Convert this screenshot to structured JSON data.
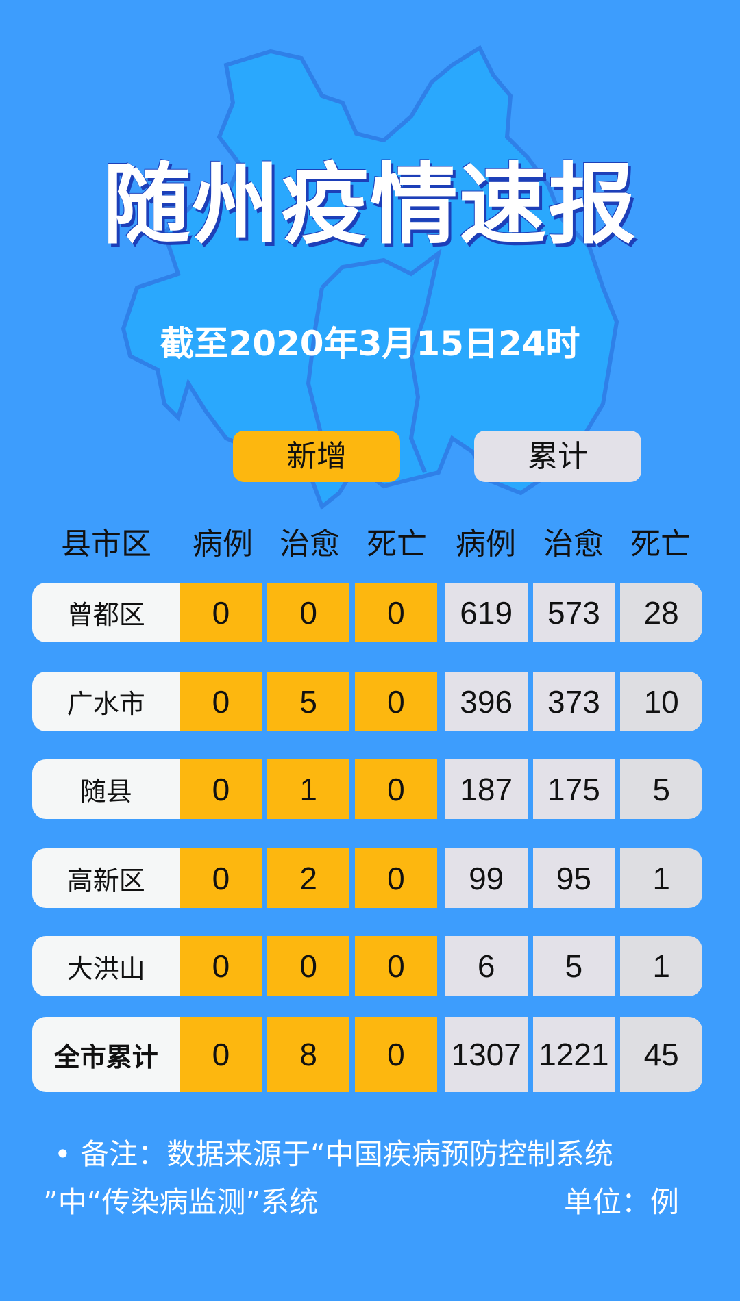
{
  "title": "随州疫情速报",
  "subtitle": "截至2020年3月15日24时",
  "tabs": {
    "new": "新增",
    "total": "累计"
  },
  "headers": [
    "县市区",
    "病例",
    "治愈",
    "死亡",
    "病例",
    "治愈",
    "死亡"
  ],
  "rows": [
    {
      "name": "曾都区",
      "values": [
        "0",
        "0",
        "0",
        "619",
        "573",
        "28"
      ]
    },
    {
      "name": "广水市",
      "values": [
        "0",
        "5",
        "0",
        "396",
        "373",
        "10"
      ]
    },
    {
      "name": "随县",
      "values": [
        "0",
        "1",
        "0",
        "187",
        "175",
        "5"
      ]
    },
    {
      "name": "高新区",
      "values": [
        "0",
        "2",
        "0",
        "99",
        "95",
        "1"
      ]
    },
    {
      "name": "大洪山",
      "values": [
        "0",
        "0",
        "0",
        "6",
        "5",
        "1"
      ]
    },
    {
      "name": "全市累计",
      "values": [
        "0",
        "8",
        "0",
        "1307",
        "1221",
        "45"
      ]
    }
  ],
  "note": {
    "line1": "• 备注：数据来源于“中国疾病预防控制系统",
    "line2": "”中“传染病监测”系统",
    "unit": "单位：例"
  },
  "colors": {
    "background": "#3d9dfd",
    "new": "#fdb70f",
    "total": "#e3e1e8",
    "map": "#2aa8fd"
  }
}
